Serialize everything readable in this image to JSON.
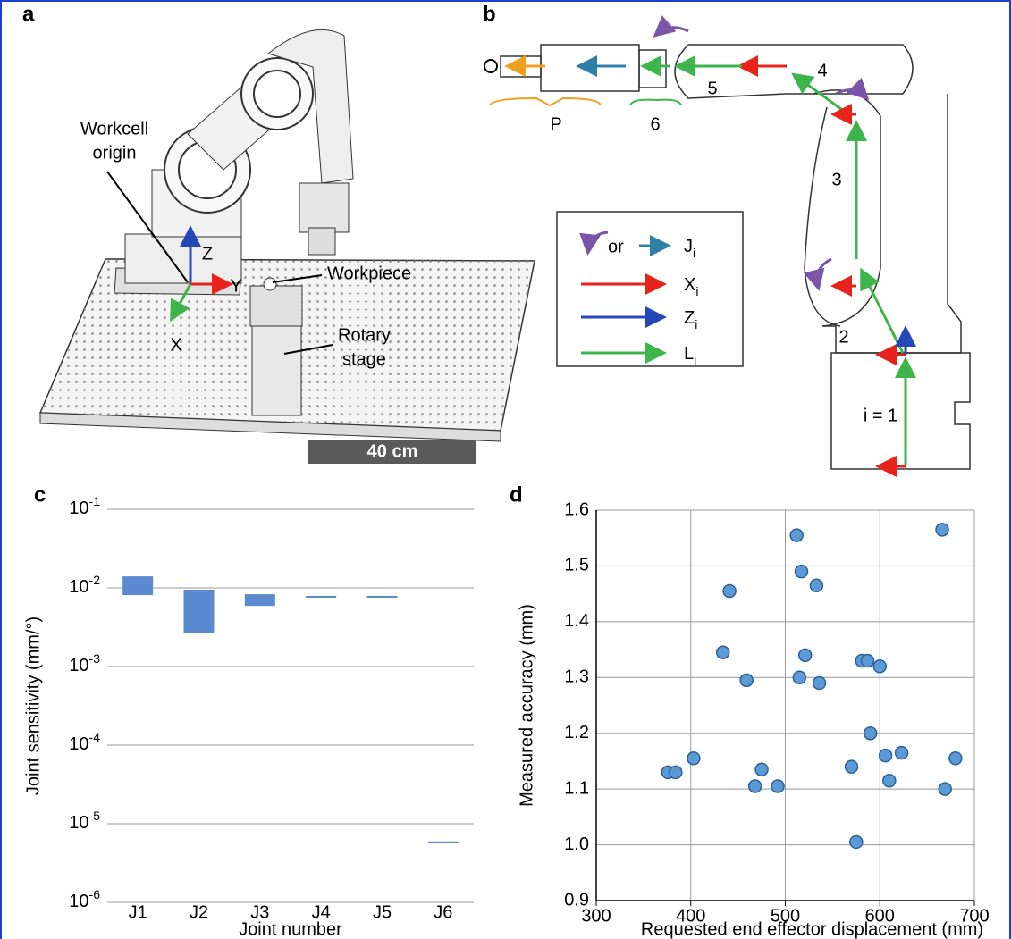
{
  "panels": {
    "a": {
      "label": "a",
      "origin_label": [
        "Workcell",
        "origin"
      ],
      "axis_z": "Z",
      "axis_y": "Y",
      "axis_x": "X",
      "workpiece": "Workpiece",
      "rotary_stage": [
        "Rotary",
        "stage"
      ],
      "scale_bar": "40 cm"
    },
    "b": {
      "label": "b",
      "segment_labels": {
        "p": "P",
        "six": "6",
        "five": "5",
        "four": "4",
        "three": "3",
        "two": "2",
        "one": "i = 1"
      },
      "legend": {
        "or": "or",
        "entries": [
          {
            "symbol": "J",
            "subscript": "i"
          },
          {
            "symbol": "X",
            "subscript": "i"
          },
          {
            "symbol": "Z",
            "subscript": "i"
          },
          {
            "symbol": "L",
            "subscript": "i"
          }
        ]
      }
    }
  },
  "chart_data": [
    {
      "type": "bar",
      "panel_label": "c",
      "ylabel": "Joint sensitivity (mm/°)",
      "xlabel": "Joint number",
      "categories": [
        "J1",
        "J2",
        "J3",
        "J4",
        "J5",
        "J6"
      ],
      "low": [
        0.0081,
        0.0027,
        0.0059,
        0.0077,
        0.0077,
        5.8e-06
      ],
      "high": [
        0.014,
        0.0095,
        0.0083,
        0.0077,
        0.0077,
        5.8e-06
      ],
      "color": "#5b8ad0",
      "log_scale": true,
      "grid": true,
      "ylim": [
        1e-06,
        0.1
      ],
      "yticks": [
        {
          "value": 0.1,
          "label": "10^-1"
        },
        {
          "value": 0.01,
          "label": "10^-2"
        },
        {
          "value": 0.001,
          "label": "10^-3"
        },
        {
          "value": 0.0001,
          "label": "10^-4"
        },
        {
          "value": 1e-05,
          "label": "10^-5"
        },
        {
          "value": 1e-06,
          "label": "10^-6"
        }
      ]
    },
    {
      "type": "scatter",
      "panel_label": "d",
      "ylabel": "Measured accuracy (mm)",
      "xlabel": "Requested end effector displacement (mm)",
      "x": [
        376,
        384,
        403,
        434,
        441,
        459,
        468,
        475,
        492,
        512,
        517,
        521,
        515,
        533,
        536,
        570,
        575,
        581,
        587,
        590,
        600,
        606,
        610,
        623,
        666,
        669,
        680
      ],
      "y": [
        1.13,
        1.13,
        1.155,
        1.345,
        1.455,
        1.295,
        1.105,
        1.135,
        1.105,
        1.555,
        1.49,
        1.34,
        1.3,
        1.465,
        1.29,
        1.14,
        1.005,
        1.33,
        1.33,
        1.2,
        1.32,
        1.16,
        1.115,
        1.165,
        1.565,
        1.1,
        1.155
      ],
      "color": "#5b9bd5",
      "grid": true,
      "xlim": [
        300,
        700
      ],
      "xticks": [
        300,
        400,
        500,
        600,
        700
      ],
      "ylim": [
        0.9,
        1.6
      ],
      "yticks": [
        0.9,
        {
          "value": 1,
          "label": "1.0"
        },
        1.1,
        1.2,
        1.3,
        1.4,
        1.5,
        1.6
      ]
    }
  ]
}
